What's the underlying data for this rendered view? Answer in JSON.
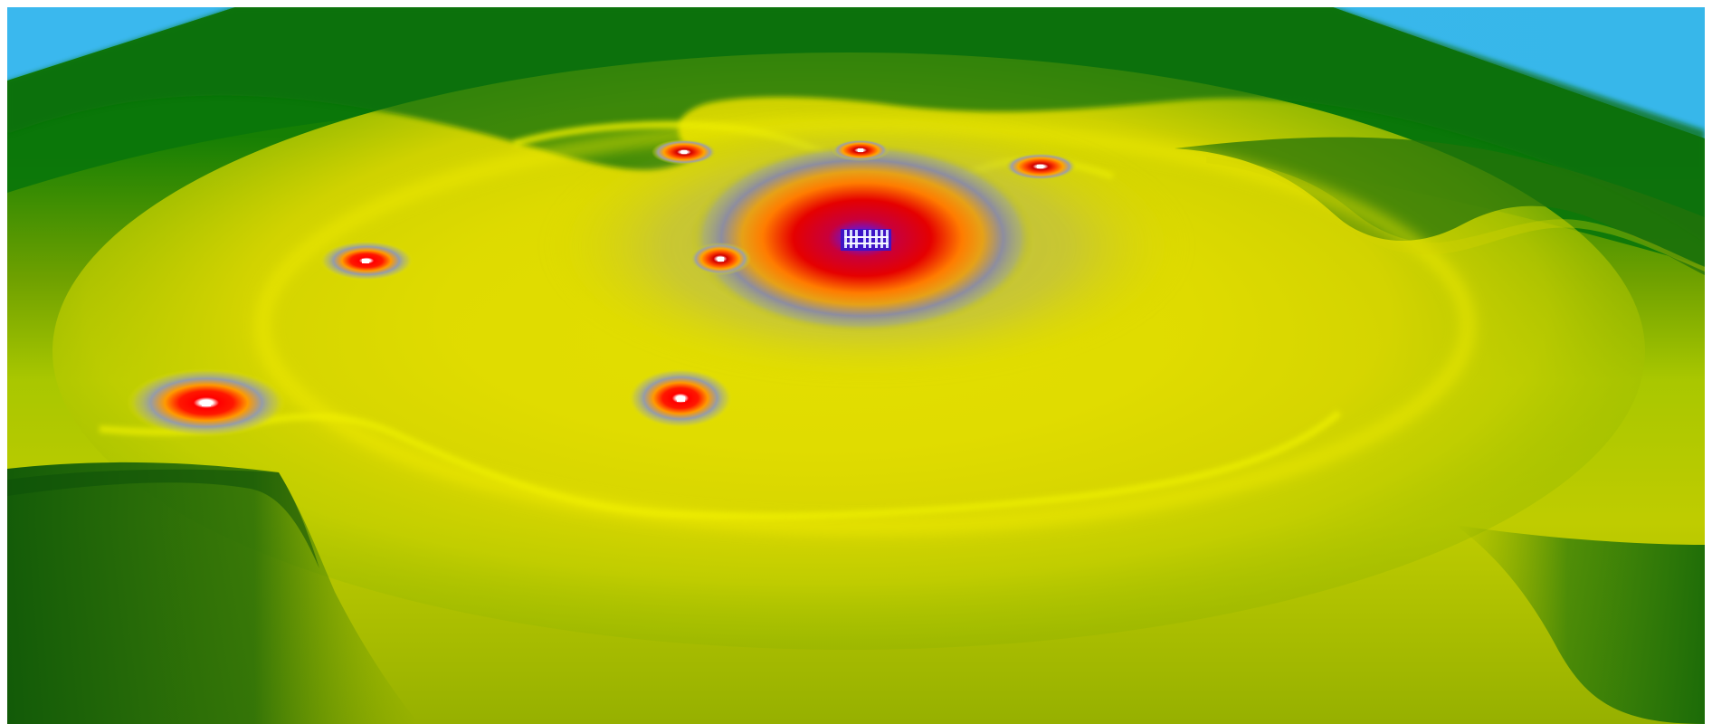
{
  "scene": {
    "type": "3d-terrain-signal-heatmap",
    "colors": {
      "sky": "#35b6ea",
      "terrain_far": "#0a7a08",
      "terrain_dark": "#0d5e0a",
      "terrain_mid": "#8fb400",
      "terrain_bright": "#e7e800",
      "ring_gray": "#8c8ea6",
      "hot_orange": "#ff9a00",
      "hot_red": "#e10000",
      "core_blue": "#2b18c8",
      "marker": "#ffffff"
    },
    "hotspots": [
      {
        "name": "central-station-cluster",
        "level": "highest"
      },
      {
        "name": "station-near-center",
        "level": "high"
      },
      {
        "name": "station-top-left",
        "level": "medium"
      },
      {
        "name": "station-top-center",
        "level": "medium"
      },
      {
        "name": "station-top-right",
        "level": "medium"
      },
      {
        "name": "station-left",
        "level": "medium"
      },
      {
        "name": "station-far-left",
        "level": "high"
      },
      {
        "name": "station-lower-center",
        "level": "high"
      }
    ]
  }
}
